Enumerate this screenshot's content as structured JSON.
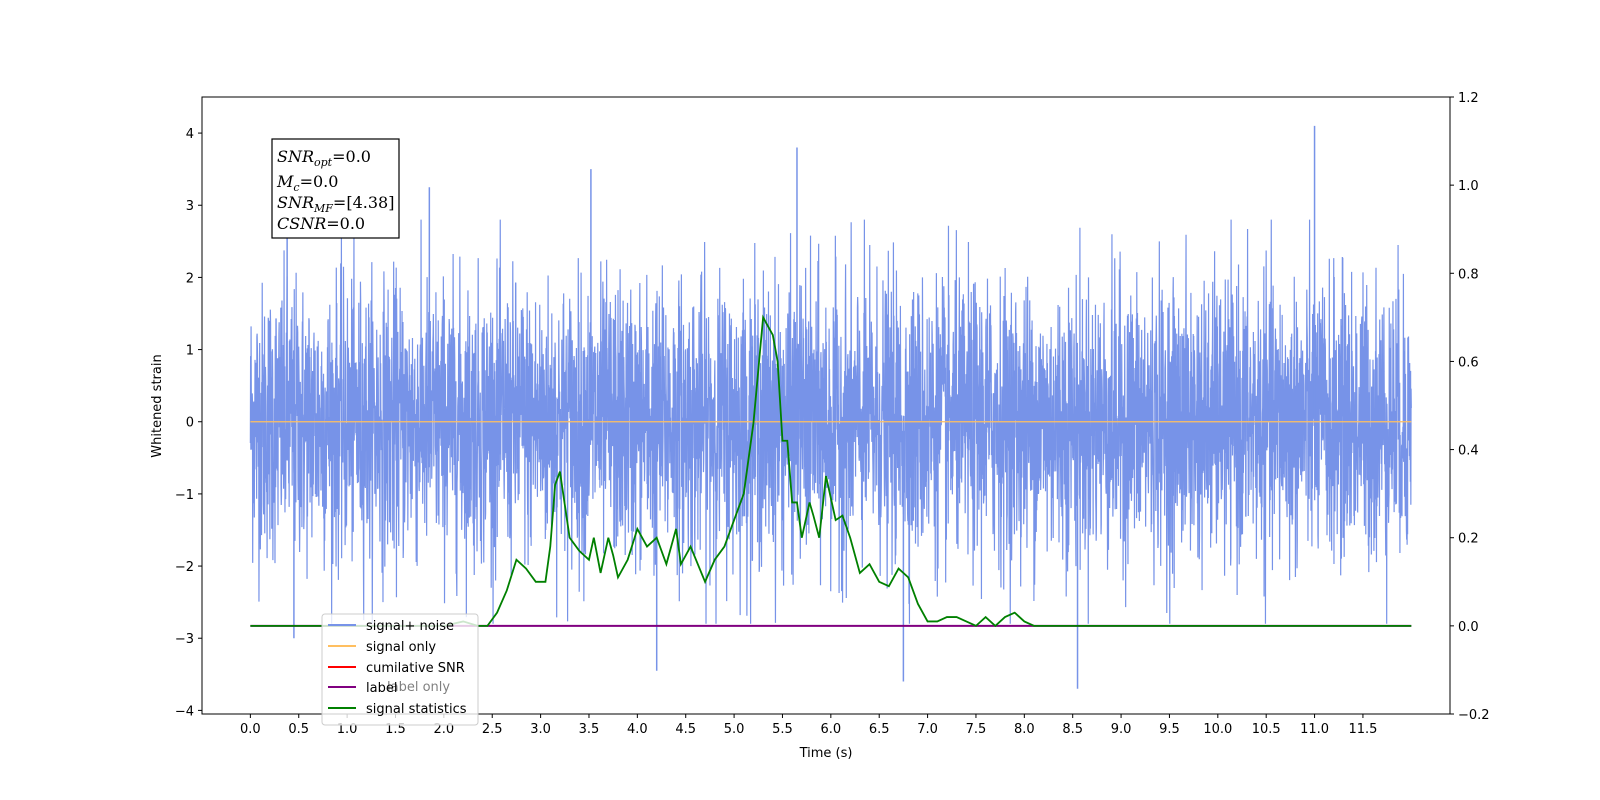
{
  "chart_data": {
    "type": "line",
    "xlabel": "Time (s)",
    "ylabel": "Whitened strain",
    "xlim": [
      -0.5,
      12.4
    ],
    "ylim": [
      -4.05,
      4.5
    ],
    "y2lim": [
      -0.2,
      1.2
    ],
    "xticks": [
      "0.0",
      "0.5",
      "1.0",
      "1.5",
      "2.0",
      "2.5",
      "3.0",
      "3.5",
      "4.0",
      "4.5",
      "5.0",
      "5.5",
      "6.0",
      "6.5",
      "7.0",
      "7.5",
      "8.0",
      "8.5",
      "9.0",
      "9.5",
      "10.0",
      "10.5",
      "11.0",
      "11.5"
    ],
    "yticks": [
      "−4",
      "−3",
      "−2",
      "−1",
      "0",
      "1",
      "2",
      "3",
      "4"
    ],
    "y2ticks": [
      "−0.2",
      "0.0",
      "0.2",
      "0.4",
      "0.6",
      "0.8",
      "1.0",
      "1.2"
    ],
    "annotation": {
      "line1": {
        "base": "SNR",
        "sub": "opt",
        "value": "=0.0"
      },
      "line2": {
        "base": "M",
        "sub": "c",
        "value": "=0.0"
      },
      "line3": {
        "base": "SNR",
        "sub": "MF",
        "value": "=[4.38]"
      },
      "line4": {
        "base": "CSNR",
        "sub": "",
        "value": "=0.0"
      }
    },
    "legend": [
      "signal+ noise",
      "signal only",
      "cumilative SNR",
      "label",
      "signal statistics"
    ],
    "hidden_legend_text": "label only",
    "colors": {
      "signal_noise": "#7793e8",
      "signal_only": "#ffbf60",
      "cumulative_snr": "#ff0000",
      "label": "#800080",
      "signal_statistics": "#008000"
    },
    "series": [
      {
        "name": "signal+ noise",
        "axis": "left",
        "description": "whitened noise samples, roughly N(0,1), t from 0.0 to 12.0 s, extremes about -3.7 and +4.1",
        "peaks": [
          [
            0.38,
            2.6
          ],
          [
            0.45,
            -3.0
          ],
          [
            1.85,
            3.25
          ],
          [
            3.52,
            3.5
          ],
          [
            4.2,
            -3.45
          ],
          [
            5.65,
            3.8
          ],
          [
            6.75,
            -3.6
          ],
          [
            8.55,
            -3.7
          ],
          [
            11.0,
            4.1
          ]
        ]
      },
      {
        "name": "signal only",
        "axis": "left",
        "x": [
          0.0,
          12.0
        ],
        "y": [
          0.0,
          0.0
        ]
      },
      {
        "name": "label",
        "axis": "right",
        "x": [
          0.0,
          12.0
        ],
        "y": [
          0.0,
          0.0
        ]
      },
      {
        "name": "signal statistics",
        "axis": "right",
        "x": [
          0.0,
          2.0,
          2.2,
          2.35,
          2.45,
          2.55,
          2.65,
          2.75,
          2.85,
          2.95,
          3.05,
          3.1,
          3.15,
          3.2,
          3.3,
          3.4,
          3.5,
          3.55,
          3.62,
          3.7,
          3.75,
          3.8,
          3.9,
          4.0,
          4.1,
          4.2,
          4.3,
          4.4,
          4.45,
          4.55,
          4.7,
          4.8,
          4.9,
          5.0,
          5.1,
          5.2,
          5.3,
          5.35,
          5.4,
          5.45,
          5.5,
          5.55,
          5.6,
          5.65,
          5.7,
          5.78,
          5.82,
          5.88,
          5.95,
          6.05,
          6.12,
          6.2,
          6.3,
          6.4,
          6.5,
          6.6,
          6.7,
          6.8,
          6.9,
          7.0,
          7.1,
          7.2,
          7.3,
          7.4,
          7.5,
          7.6,
          7.7,
          7.8,
          7.9,
          8.0,
          8.1,
          8.2,
          8.4,
          12.0
        ],
        "y": [
          0.0,
          0.0,
          0.01,
          0.0,
          0.0,
          0.03,
          0.08,
          0.15,
          0.13,
          0.1,
          0.1,
          0.18,
          0.32,
          0.35,
          0.2,
          0.17,
          0.15,
          0.2,
          0.12,
          0.2,
          0.16,
          0.11,
          0.15,
          0.22,
          0.18,
          0.2,
          0.14,
          0.22,
          0.14,
          0.18,
          0.1,
          0.15,
          0.18,
          0.24,
          0.3,
          0.46,
          0.7,
          0.68,
          0.66,
          0.6,
          0.42,
          0.42,
          0.28,
          0.28,
          0.2,
          0.28,
          0.25,
          0.2,
          0.34,
          0.24,
          0.25,
          0.2,
          0.12,
          0.14,
          0.1,
          0.09,
          0.13,
          0.11,
          0.05,
          0.01,
          0.01,
          0.02,
          0.02,
          0.01,
          0.0,
          0.02,
          0.0,
          0.02,
          0.03,
          0.01,
          0.0,
          0.0,
          0.0,
          0.0
        ]
      }
    ]
  }
}
